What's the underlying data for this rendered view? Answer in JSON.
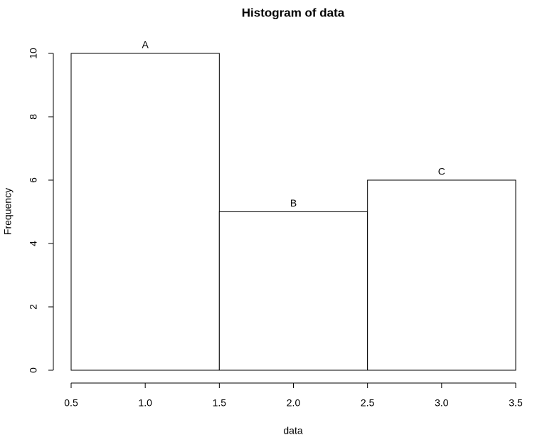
{
  "chart_data": {
    "type": "histogram",
    "title": "Histogram of data",
    "x_label": "data",
    "y_label": "Frequency",
    "bins": [
      0.5,
      1.5,
      2.5,
      3.5
    ],
    "values": [
      10,
      5,
      6
    ],
    "labels": [
      "A",
      "B",
      "C"
    ],
    "color": "#ffffff",
    "edge_color": "#000000",
    "xlim": [
      0.5,
      3.5
    ],
    "xticks": [
      0.5,
      {
        "value": 1,
        "label": "1.0"
      },
      1.5,
      {
        "value": 2,
        "label": "2.0"
      },
      2.5,
      {
        "value": 3,
        "label": "3.0"
      },
      3.5
    ],
    "ylim": [
      0,
      10
    ],
    "yticks": [
      0,
      2,
      4,
      6,
      8,
      10
    ],
    "grid": false
  }
}
